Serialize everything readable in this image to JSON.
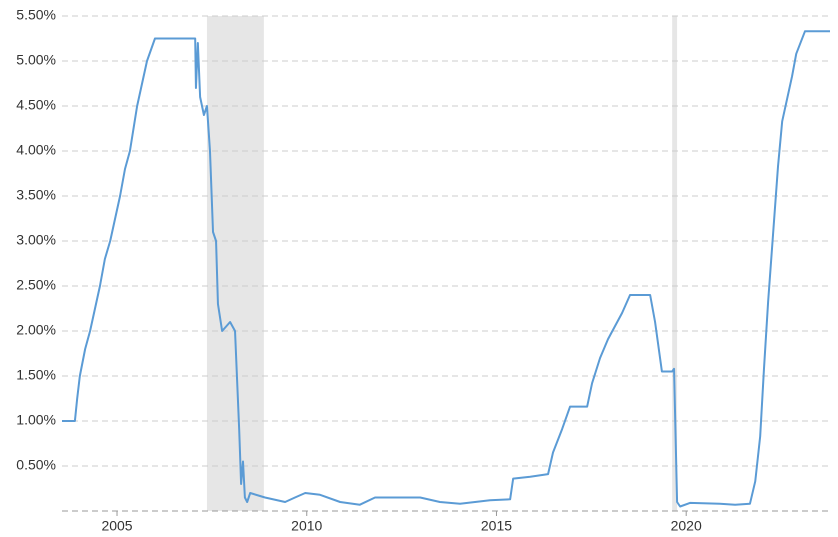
{
  "chart_data": {
    "type": "line",
    "x": [
      2003.55,
      2003.89,
      2003.95,
      2004.02,
      2004.16,
      2004.29,
      2004.42,
      2004.55,
      2004.68,
      2004.82,
      2004.95,
      2005.08,
      2005.21,
      2005.34,
      2005.53,
      2005.66,
      2005.79,
      2006.0,
      2007.06,
      2007.08,
      2007.13,
      2007.19,
      2007.29,
      2007.37,
      2007.45,
      2007.53,
      2007.61,
      2007.66,
      2007.77,
      2007.98,
      2008.11,
      2008.16,
      2008.22,
      2008.27,
      2008.32,
      2008.37,
      2008.43,
      2008.51,
      2008.9,
      2009.43,
      2009.69,
      2009.96,
      2010.35,
      2010.88,
      2011.4,
      2011.8,
      2012.99,
      2013.51,
      2014.04,
      2014.83,
      2015.36,
      2015.44,
      2015.89,
      2016.36,
      2016.49,
      2016.73,
      2016.94,
      2017.39,
      2017.52,
      2017.73,
      2017.94,
      2018.31,
      2018.52,
      2019.05,
      2019.18,
      2019.36,
      2019.63,
      2019.68,
      2019.76,
      2019.84,
      2020.1,
      2020.89,
      2021.29,
      2021.68,
      2021.82,
      2021.95,
      2022.05,
      2022.16,
      2022.29,
      2022.42,
      2022.53,
      2022.66,
      2022.79,
      2022.9,
      2023.13,
      2023.79
    ],
    "series": [
      {
        "color": "#5b9bd5",
        "values": [
          1.0,
          1.0,
          1.25,
          1.5,
          1.8,
          2.0,
          2.25,
          2.5,
          2.8,
          3.0,
          3.25,
          3.5,
          3.8,
          4.0,
          4.5,
          4.75,
          5.0,
          5.25,
          5.25,
          4.7,
          5.2,
          4.6,
          4.4,
          4.5,
          4.0,
          3.1,
          3.0,
          2.3,
          2.0,
          2.1,
          2.0,
          1.5,
          0.9,
          0.3,
          0.55,
          0.15,
          0.1,
          0.2,
          0.15,
          0.1,
          0.15,
          0.2,
          0.18,
          0.1,
          0.07,
          0.15,
          0.15,
          0.1,
          0.08,
          0.12,
          0.13,
          0.36,
          0.38,
          0.41,
          0.65,
          0.91,
          1.16,
          1.16,
          1.42,
          1.7,
          1.91,
          2.2,
          2.4,
          2.4,
          2.1,
          1.55,
          1.55,
          1.58,
          0.1,
          0.05,
          0.09,
          0.08,
          0.07,
          0.08,
          0.33,
          0.83,
          1.58,
          2.33,
          3.08,
          3.83,
          4.33,
          4.58,
          4.83,
          5.08,
          5.33,
          5.33
        ]
      }
    ],
    "shaded_ranges": [
      [
        2007.37,
        2008.87
      ],
      [
        2019.63,
        2019.76
      ]
    ],
    "shade_color": "#e6e6e6",
    "xlim": [
      2003.55,
      2023.79
    ],
    "xticks": [
      2005,
      2010,
      2015,
      2020
    ],
    "ylim": [
      0,
      5.5
    ],
    "yticks": [
      {
        "value": 0.5,
        "label": "0.50%"
      },
      {
        "value": 1.0,
        "label": "1.00%"
      },
      {
        "value": 1.5,
        "label": "1.50%"
      },
      {
        "value": 2.0,
        "label": "2.00%"
      },
      {
        "value": 2.5,
        "label": "2.50%"
      },
      {
        "value": 3.0,
        "label": "3.00%"
      },
      {
        "value": 3.5,
        "label": "3.50%"
      },
      {
        "value": 4.0,
        "label": "4.00%"
      },
      {
        "value": 4.5,
        "label": "4.50%"
      },
      {
        "value": 5.0,
        "label": "5.00%"
      },
      {
        "value": 5.5,
        "label": "5.50%"
      }
    ],
    "grid": true
  }
}
